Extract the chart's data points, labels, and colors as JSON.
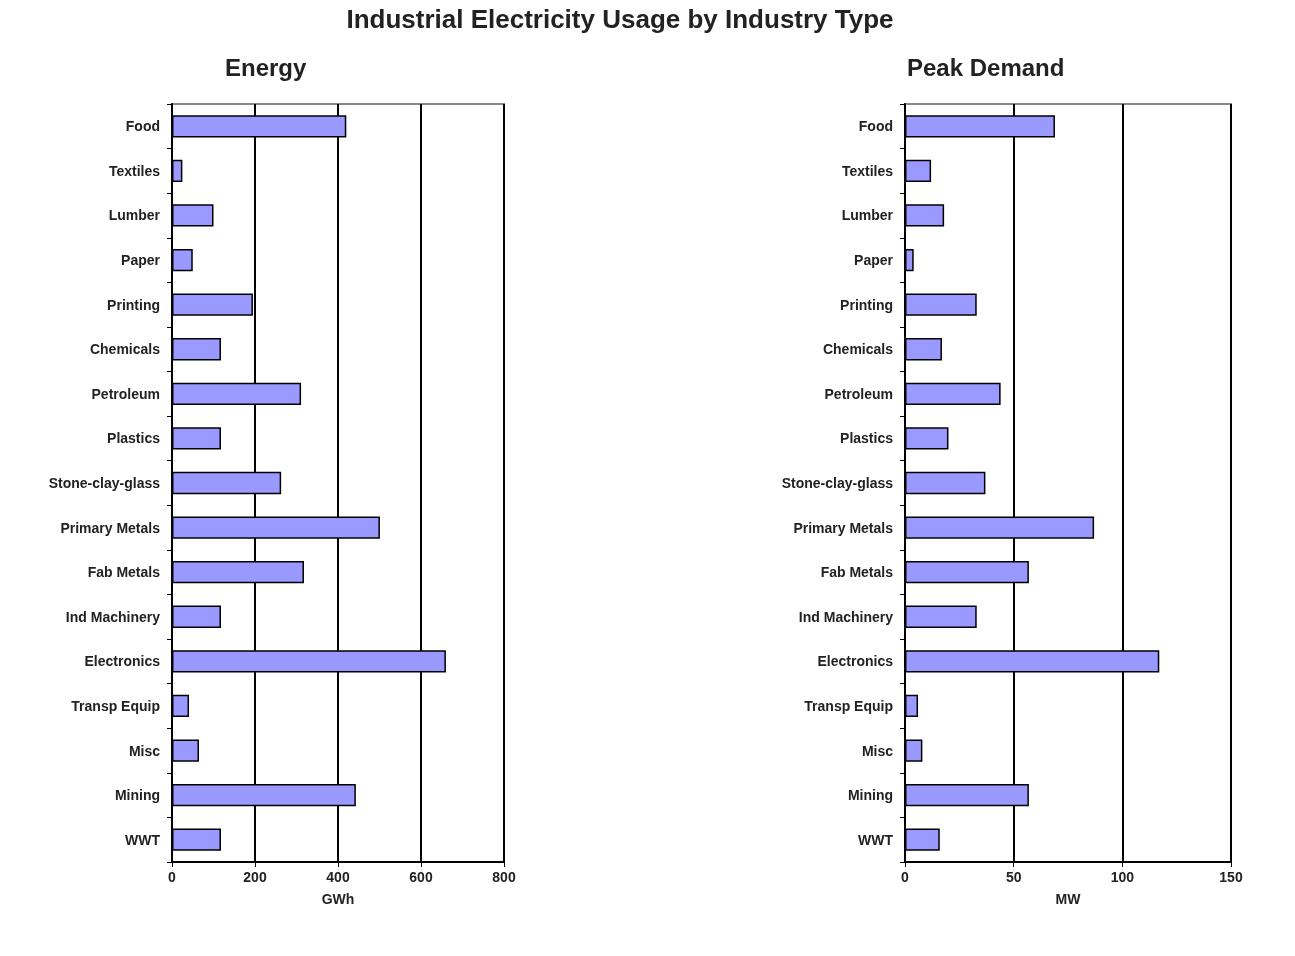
{
  "chart_data": [
    {
      "type": "bar",
      "orientation": "horizontal",
      "title": "Energy",
      "xlabel": "GWh",
      "annotations": [
        "Industrial Electricity Usage by Industry Type"
      ],
      "categories": [
        "Food",
        "Textiles",
        "Lumber",
        "Paper",
        "Printing",
        "Chemicals",
        "Petroleum",
        "Plastics",
        "Stone-clay-glass",
        "Primary Metals",
        "Fab Metals",
        "Ind Machinery",
        "Electronics",
        "Transp Equip",
        "Misc",
        "Mining",
        "WWT"
      ],
      "values": [
        420,
        25,
        100,
        50,
        195,
        118,
        311,
        118,
        263,
        501,
        318,
        118,
        660,
        41,
        65,
        443,
        118
      ],
      "color": "#9999ff",
      "xlim": [
        0,
        800
      ],
      "xticks": [
        0,
        200,
        400,
        600,
        800
      ],
      "grid": "x"
    },
    {
      "type": "bar",
      "orientation": "horizontal",
      "title": "Peak Demand",
      "xlabel": "MW",
      "categories": [
        "Food",
        "Textiles",
        "Lumber",
        "Paper",
        "Printing",
        "Chemicals",
        "Petroleum",
        "Plastics",
        "Stone-clay-glass",
        "Primary Metals",
        "Fab Metals",
        "Ind Machinery",
        "Electronics",
        "Transp Equip",
        "Misc",
        "Mining",
        "WWT"
      ],
      "values": [
        69,
        12,
        18,
        4,
        33,
        17,
        44,
        20,
        37,
        87,
        57,
        33,
        117,
        6,
        8,
        57,
        16
      ],
      "color": "#9999ff",
      "xlim": [
        0,
        150
      ],
      "xticks": [
        0,
        50,
        100,
        150
      ],
      "grid": "x"
    }
  ]
}
